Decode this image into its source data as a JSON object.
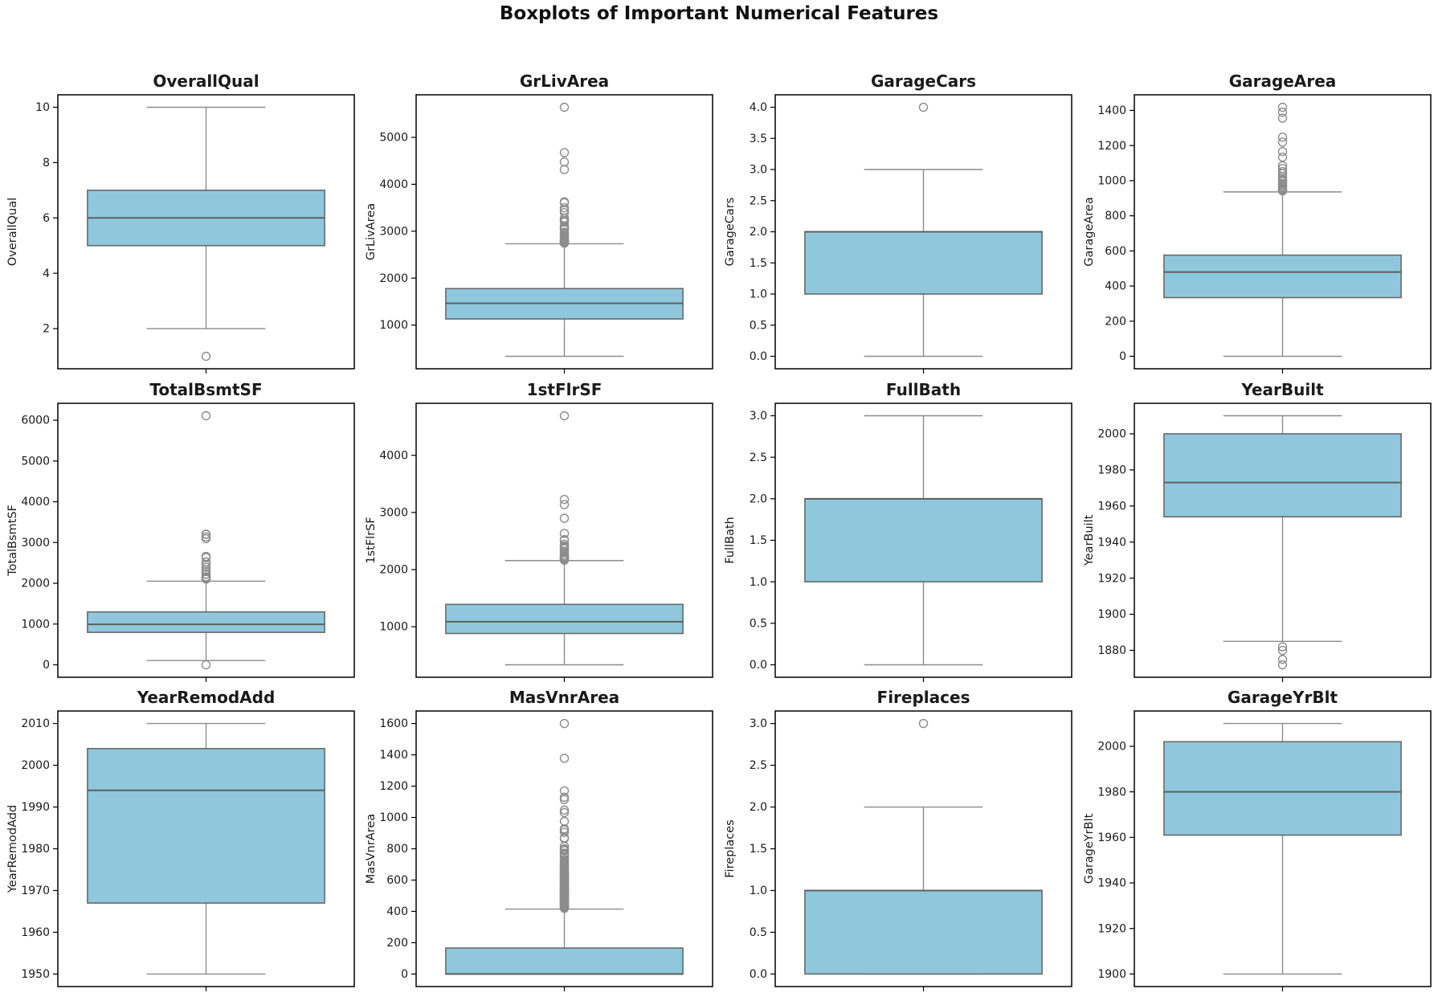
{
  "title": "Boxplots of Important Numerical Features",
  "colors": {
    "box_fill": "#8FC8DD",
    "box_edge": "#6a6a6a",
    "median": "#5f5f5f",
    "whisker": "#8c8c8c",
    "flier": "#8c8c8c",
    "axis": "#000000",
    "text": "#1a1a1a"
  },
  "chart_data": {
    "type": "boxplot",
    "grid": {
      "rows": 3,
      "cols": 4
    },
    "legend": "none",
    "plots": [
      {
        "title": "OverallQual",
        "ylabel": "OverallQual",
        "ylim": [
          0.55,
          10.45
        ],
        "ytick_values": [
          2,
          4,
          6,
          8,
          10
        ],
        "ytick_labels": [
          "2",
          "4",
          "6",
          "8",
          "10"
        ],
        "q1": 5,
        "median": 6,
        "q3": 7,
        "whisker_low": 2,
        "whisker_high": 10,
        "outliers": [
          1
        ]
      },
      {
        "title": "GrLivArea",
        "ylabel": "GrLivArea",
        "ylim": [
          68.6,
          5907.4
        ],
        "ytick_values": [
          1000,
          2000,
          3000,
          4000,
          5000
        ],
        "ytick_labels": [
          "1000",
          "2000",
          "3000",
          "4000",
          "5000"
        ],
        "q1": 1130,
        "median": 1464,
        "q3": 1777,
        "whisker_low": 334,
        "whisker_high": 2732,
        "outliers": [
          5642,
          4676,
          4476,
          4316,
          3627,
          3608,
          3500,
          3447,
          3395,
          3279,
          3238,
          3222,
          3194,
          3112,
          3086,
          3058,
          3036,
          2978,
          2954,
          2898,
          2872,
          2853,
          2828,
          2810,
          2794,
          2786,
          2775,
          2765,
          2758,
          2747
        ]
      },
      {
        "title": "GarageCars",
        "ylabel": "GarageCars",
        "ylim": [
          -0.2,
          4.2
        ],
        "ytick_values": [
          0.0,
          0.5,
          1.0,
          1.5,
          2.0,
          2.5,
          3.0,
          3.5,
          4.0
        ],
        "ytick_labels": [
          "0.0",
          "0.5",
          "1.0",
          "1.5",
          "2.0",
          "2.5",
          "3.0",
          "3.5",
          "4.0"
        ],
        "q1": 1,
        "median": 2,
        "q3": 2,
        "whisker_low": 0,
        "whisker_high": 3,
        "outliers": [
          4
        ]
      },
      {
        "title": "GarageArea",
        "ylabel": "GarageArea",
        "ylim": [
          -70.9,
          1488.9
        ],
        "ytick_values": [
          0,
          200,
          400,
          600,
          800,
          1000,
          1200,
          1400
        ],
        "ytick_labels": [
          "0",
          "200",
          "400",
          "600",
          "800",
          "1000",
          "1200",
          "1400"
        ],
        "q1": 334,
        "median": 480,
        "q3": 576,
        "whisker_low": 0,
        "whisker_high": 936,
        "outliers": [
          1418,
          1390,
          1356,
          1248,
          1220,
          1166,
          1134,
          1085,
          1069,
          1052,
          1041,
          1025,
          1014,
          1003,
          995,
          984,
          976,
          968,
          960,
          952,
          946,
          942
        ]
      },
      {
        "title": "TotalBsmtSF",
        "ylabel": "TotalBsmtSF",
        "ylim": [
          -305.5,
          6415.5
        ],
        "ytick_values": [
          0,
          1000,
          2000,
          3000,
          4000,
          5000,
          6000
        ],
        "ytick_labels": [
          "0",
          "1000",
          "2000",
          "3000",
          "4000",
          "5000",
          "6000"
        ],
        "q1": 796,
        "median": 992,
        "q3": 1298,
        "whisker_low": 105,
        "whisker_high": 2052,
        "outliers": [
          6110,
          3206,
          3200,
          3138,
          3094,
          2660,
          2633,
          2524,
          2452,
          2396,
          2330,
          2288,
          2223,
          2217,
          2158,
          2136,
          2121,
          2110,
          2104,
          0
        ]
      },
      {
        "title": "1stFlrSF",
        "ylabel": "1stFlrSF",
        "ylim": [
          116.1,
          4909.9
        ],
        "ytick_values": [
          1000,
          2000,
          3000,
          4000
        ],
        "ytick_labels": [
          "1000",
          "2000",
          "3000",
          "4000"
        ],
        "q1": 882,
        "median": 1087,
        "q3": 1391,
        "whisker_low": 334,
        "whisker_high": 2158,
        "outliers": [
          4692,
          3228,
          3138,
          2898,
          2633,
          2524,
          2515,
          2444,
          2411,
          2402,
          2392,
          2364,
          2324,
          2296,
          2259,
          2234,
          2223,
          2217,
          2211,
          2207,
          2198,
          2188,
          2176,
          2166
        ]
      },
      {
        "title": "FullBath",
        "ylabel": "FullBath",
        "ylim": [
          -0.15,
          3.15
        ],
        "ytick_values": [
          0.0,
          0.5,
          1.0,
          1.5,
          2.0,
          2.5,
          3.0
        ],
        "ytick_labels": [
          "0.0",
          "0.5",
          "1.0",
          "1.5",
          "2.0",
          "2.5",
          "3.0"
        ],
        "q1": 1,
        "median": 2,
        "q3": 2,
        "whisker_low": 0,
        "whisker_high": 3,
        "outliers": []
      },
      {
        "title": "YearBuilt",
        "ylabel": "YearBuilt",
        "ylim": [
          1865.1,
          2016.9
        ],
        "ytick_values": [
          1880,
          1900,
          1920,
          1940,
          1960,
          1980,
          2000
        ],
        "ytick_labels": [
          "1880",
          "1900",
          "1920",
          "1940",
          "1960",
          "1980",
          "2000"
        ],
        "q1": 1954,
        "median": 1973,
        "q3": 2000,
        "whisker_low": 1885,
        "whisker_high": 2010,
        "outliers": [
          1882,
          1880,
          1875,
          1872
        ]
      },
      {
        "title": "YearRemodAdd",
        "ylabel": "YearRemodAdd",
        "ylim": [
          1947,
          2013
        ],
        "ytick_values": [
          1950,
          1960,
          1970,
          1980,
          1990,
          2000,
          2010
        ],
        "ytick_labels": [
          "1950",
          "1960",
          "1970",
          "1980",
          "1990",
          "2000",
          "2010"
        ],
        "q1": 1967,
        "median": 1994,
        "q3": 2004,
        "whisker_low": 1950,
        "whisker_high": 2010,
        "outliers": []
      },
      {
        "title": "MasVnrArea",
        "ylabel": "MasVnrArea",
        "ylim": [
          -80,
          1680
        ],
        "ytick_values": [
          0,
          200,
          400,
          600,
          800,
          1000,
          1200,
          1400,
          1600
        ],
        "ytick_labels": [
          "0",
          "200",
          "400",
          "600",
          "800",
          "1000",
          "1200",
          "1400",
          "1600"
        ],
        "q1": 0,
        "median": 0,
        "q3": 166,
        "whisker_low": 0,
        "whisker_high": 415,
        "outliers": [
          1600,
          1378,
          1170,
          1129,
          1115,
          1047,
          1031,
          975,
          927,
          921,
          905,
          870,
          865,
          816,
          800,
          796,
          788,
          772,
          766,
          760,
          748,
          731,
          722,
          714,
          705,
          698,
          690,
          684,
          678,
          673,
          668,
          662,
          657,
          651,
          645,
          640,
          636,
          632,
          628,
          625,
          621,
          618,
          615,
          612,
          608,
          604,
          600,
          596,
          592,
          588,
          584,
          580,
          576,
          573,
          570,
          567,
          564,
          561,
          558,
          555,
          552,
          549,
          546,
          543,
          540,
          537,
          534,
          531,
          528,
          525,
          522,
          519,
          516,
          513,
          510,
          507,
          504,
          501,
          498,
          495,
          492,
          489,
          486,
          483,
          480,
          477,
          474,
          471,
          468,
          465,
          462,
          459,
          456,
          453,
          450,
          447,
          444,
          441,
          438,
          435,
          432,
          429,
          426,
          423,
          420
        ]
      },
      {
        "title": "Fireplaces",
        "ylabel": "Fireplaces",
        "ylim": [
          -0.15,
          3.15
        ],
        "ytick_values": [
          0.0,
          0.5,
          1.0,
          1.5,
          2.0,
          2.5,
          3.0
        ],
        "ytick_labels": [
          "0.0",
          "0.5",
          "1.0",
          "1.5",
          "2.0",
          "2.5",
          "3.0"
        ],
        "q1": 0,
        "median": 1,
        "q3": 1,
        "whisker_low": 0,
        "whisker_high": 2,
        "outliers": [
          3
        ]
      },
      {
        "title": "GarageYrBlt",
        "ylabel": "GarageYrBlt",
        "ylim": [
          1894.5,
          2015.5
        ],
        "ytick_values": [
          1900,
          1920,
          1940,
          1960,
          1980,
          2000
        ],
        "ytick_labels": [
          "1900",
          "1920",
          "1940",
          "1960",
          "1980",
          "2000"
        ],
        "q1": 1961,
        "median": 1980,
        "q3": 2002,
        "whisker_low": 1900,
        "whisker_high": 2010,
        "outliers": []
      }
    ]
  }
}
